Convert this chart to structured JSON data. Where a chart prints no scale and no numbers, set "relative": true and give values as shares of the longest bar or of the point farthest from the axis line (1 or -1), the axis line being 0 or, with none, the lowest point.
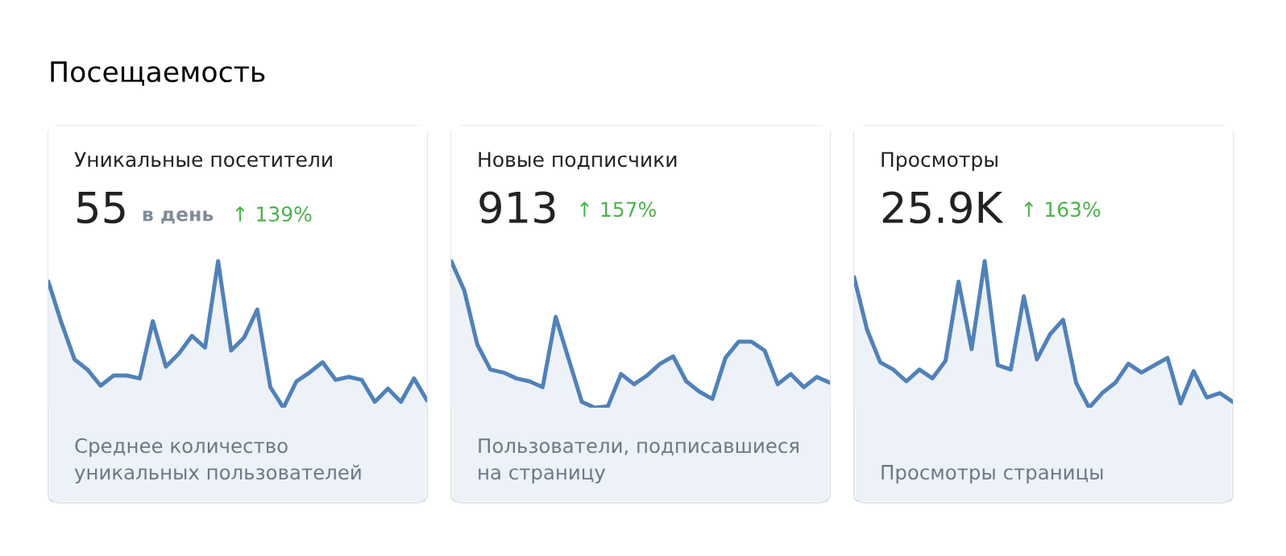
{
  "chart_data": [
    {
      "type": "area",
      "title": "Уникальные посетители",
      "subtitle": "55",
      "relative": true,
      "categories": [
        null,
        null,
        null,
        null,
        null,
        null,
        null,
        null,
        null,
        null,
        null,
        null,
        null,
        null,
        null,
        null,
        null,
        null,
        null,
        null,
        null,
        null,
        null,
        null,
        null,
        null,
        null,
        null,
        null,
        null
      ],
      "series": [
        {
          "color": "#5181b8",
          "values": [
            0.86,
            0.58,
            0.33,
            0.26,
            0.15,
            0.22,
            0.22,
            0.2,
            0.59,
            0.28,
            0.37,
            0.49,
            0.41,
            1,
            0.39,
            0.48,
            0.67,
            0.14,
            0,
            0.18,
            0.24,
            0.31,
            0.19,
            0.21,
            0.19,
            0.04,
            0.13,
            0.04,
            0.2,
            0.05
          ]
        }
      ],
      "annotations": [
        "↑ 139%",
        "Среднее количество уникальных пользователей",
        "в день",
        "Посещаемость"
      ]
    },
    {
      "type": "area",
      "title": "Новые подписчики",
      "subtitle": "913",
      "relative": true,
      "categories": [
        null,
        null,
        null,
        null,
        null,
        null,
        null,
        null,
        null,
        null,
        null,
        null,
        null,
        null,
        null,
        null,
        null,
        null,
        null,
        null,
        null,
        null,
        null,
        null,
        null,
        null,
        null,
        null,
        null,
        null
      ],
      "series": [
        {
          "color": "#5181b8",
          "values": [
            1,
            0.8,
            0.43,
            0.26,
            0.24,
            0.2,
            0.18,
            0.14,
            0.62,
            0.33,
            0.04,
            0,
            0.01,
            0.23,
            0.16,
            0.22,
            0.3,
            0.35,
            0.18,
            0.11,
            0.06,
            0.34,
            0.45,
            0.45,
            0.39,
            0.16,
            0.23,
            0.14,
            0.21,
            0.17
          ]
        }
      ],
      "annotations": [
        "↑ 157%",
        "Пользователи, подписавшиеся на страницу"
      ]
    },
    {
      "type": "area",
      "title": "Просмотры",
      "subtitle": "25.9K",
      "relative": true,
      "categories": [
        null,
        null,
        null,
        null,
        null,
        null,
        null,
        null,
        null,
        null,
        null,
        null,
        null,
        null,
        null,
        null,
        null,
        null,
        null,
        null,
        null,
        null,
        null,
        null,
        null,
        null,
        null,
        null,
        null,
        null
      ],
      "series": [
        {
          "color": "#5181b8",
          "values": [
            0.89,
            0.53,
            0.31,
            0.26,
            0.18,
            0.26,
            0.2,
            0.32,
            0.86,
            0.4,
            1,
            0.29,
            0.26,
            0.76,
            0.33,
            0.5,
            0.6,
            0.17,
            0,
            0.1,
            0.17,
            0.3,
            0.24,
            0.29,
            0.34,
            0.03,
            0.25,
            0.07,
            0.1,
            0.04
          ]
        }
      ],
      "annotations": [
        "↑ 163%",
        "Просмотры страницы"
      ]
    }
  ]
}
